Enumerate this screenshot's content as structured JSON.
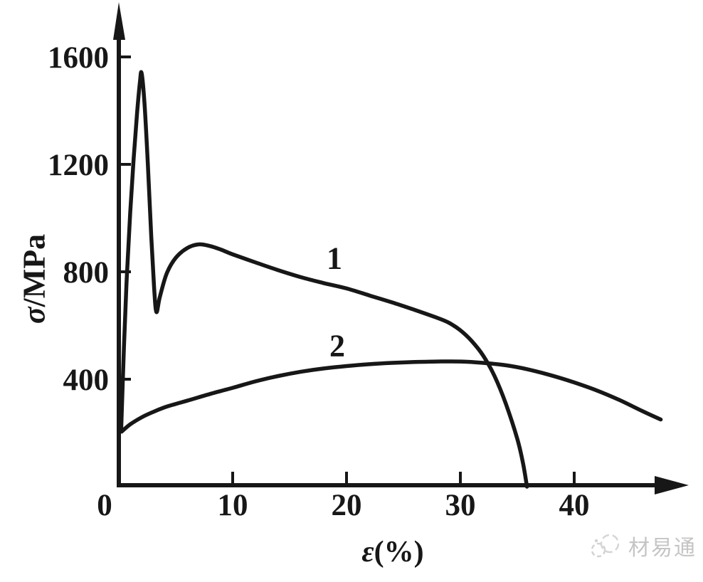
{
  "chart_data": {
    "type": "line",
    "title": "",
    "xlabel": "ε(%)",
    "ylabel": "σ/MPa",
    "xlabel_parts": {
      "symbol": "ε",
      "rest": "(%)"
    },
    "ylabel_parts": {
      "symbol": "σ",
      "rest": "/MPa"
    },
    "xlim": [
      0,
      48.5
    ],
    "ylim": [
      0,
      1780
    ],
    "x_ticks": [
      0,
      10,
      20,
      30,
      40
    ],
    "y_ticks": [
      400,
      800,
      1200,
      1600
    ],
    "grid": false,
    "legend_position": "none",
    "axis_color": "#171717",
    "curve_color": "#171717",
    "series": [
      {
        "name": "curve-1",
        "label": "1",
        "points": [
          [
            0.2,
            205
          ],
          [
            0.45,
            520
          ],
          [
            0.7,
            780
          ],
          [
            1.0,
            1020
          ],
          [
            1.3,
            1220
          ],
          [
            1.6,
            1390
          ],
          [
            1.85,
            1505
          ],
          [
            2.0,
            1540
          ],
          [
            2.25,
            1430
          ],
          [
            2.55,
            1200
          ],
          [
            2.85,
            930
          ],
          [
            3.1,
            740
          ],
          [
            3.3,
            650
          ],
          [
            3.6,
            706
          ],
          [
            4.2,
            793
          ],
          [
            5,
            852
          ],
          [
            6,
            888
          ],
          [
            7,
            902
          ],
          [
            8,
            896
          ],
          [
            9,
            882
          ],
          [
            10,
            865
          ],
          [
            12,
            835
          ],
          [
            14,
            806
          ],
          [
            16,
            780
          ],
          [
            18,
            758
          ],
          [
            20,
            738
          ],
          [
            22,
            712
          ],
          [
            24,
            686
          ],
          [
            26,
            658
          ],
          [
            28,
            628
          ],
          [
            29,
            610
          ],
          [
            30,
            582
          ],
          [
            31,
            542
          ],
          [
            32,
            488
          ],
          [
            33,
            412
          ],
          [
            34,
            308
          ],
          [
            35,
            178
          ],
          [
            35.5,
            88
          ],
          [
            35.85,
            0
          ]
        ]
      },
      {
        "name": "curve-2",
        "label": "2",
        "points": [
          [
            0.25,
            205
          ],
          [
            1,
            232
          ],
          [
            2,
            258
          ],
          [
            3,
            278
          ],
          [
            4,
            295
          ],
          [
            5,
            308
          ],
          [
            6,
            320
          ],
          [
            8,
            345
          ],
          [
            10,
            368
          ],
          [
            12,
            392
          ],
          [
            14,
            412
          ],
          [
            16,
            428
          ],
          [
            18,
            440
          ],
          [
            20,
            449
          ],
          [
            22,
            456
          ],
          [
            24,
            461
          ],
          [
            26,
            464
          ],
          [
            28,
            466
          ],
          [
            30,
            466
          ],
          [
            32,
            461
          ],
          [
            34,
            452
          ],
          [
            36,
            436
          ],
          [
            38,
            414
          ],
          [
            40,
            388
          ],
          [
            42,
            358
          ],
          [
            44,
            322
          ],
          [
            46,
            281
          ],
          [
            47.6,
            250
          ]
        ]
      }
    ]
  },
  "watermark": {
    "text": "材易通"
  }
}
